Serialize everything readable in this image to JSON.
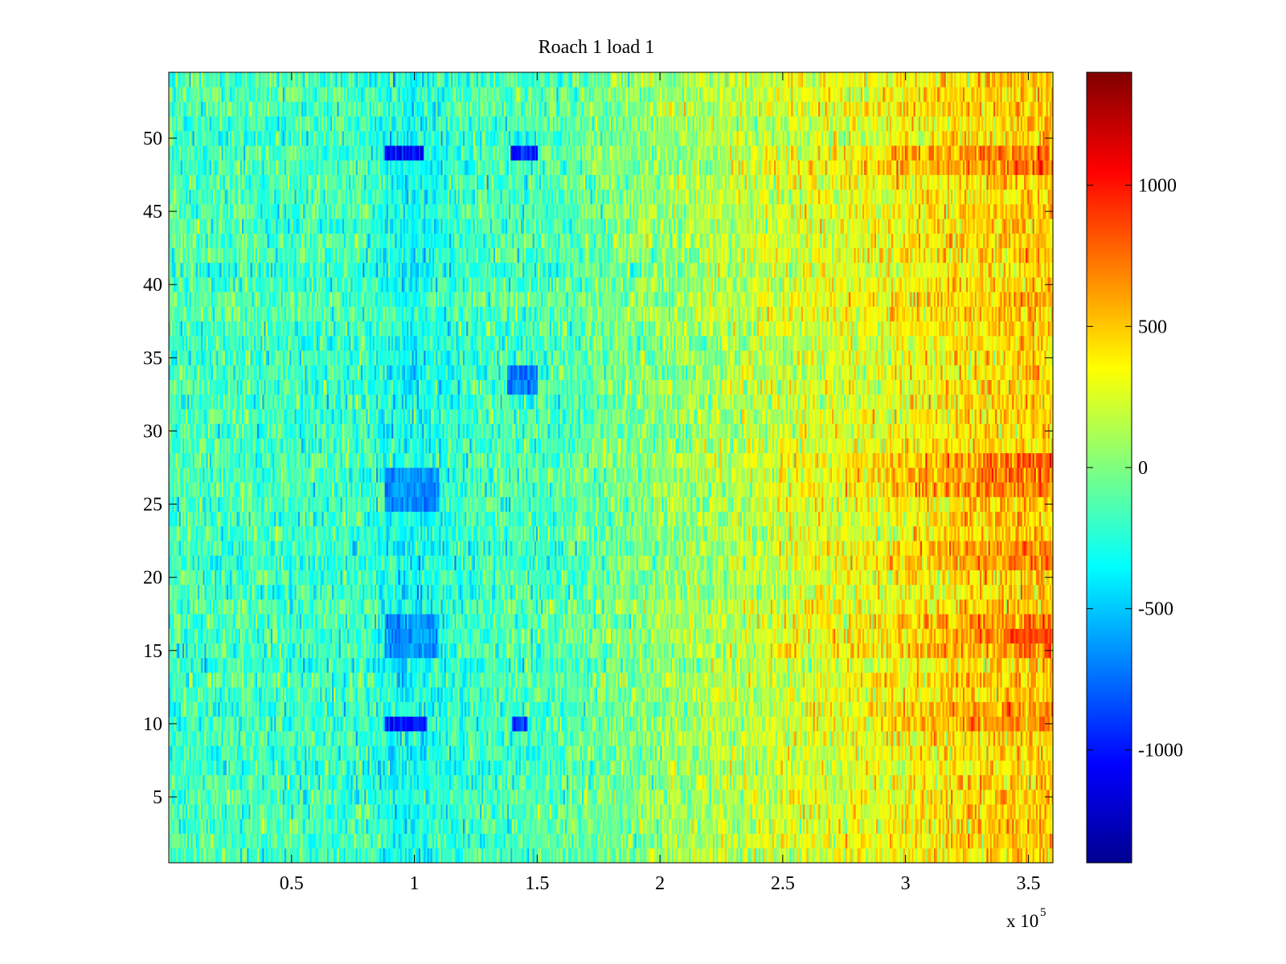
{
  "chart_data": {
    "type": "heatmap",
    "title": "Roach 1 load 1",
    "xlabel": "",
    "ylabel": "",
    "x_multiplier_label": "x 10",
    "x_multiplier_exponent": "5",
    "xlim": [
      0,
      3.6
    ],
    "ylim": [
      0.5,
      54.5
    ],
    "x_ticks": [
      0.5,
      1,
      1.5,
      2,
      2.5,
      3,
      3.5
    ],
    "x_tick_labels": [
      "0.5",
      "1",
      "1.5",
      "2",
      "2.5",
      "3",
      "3.5"
    ],
    "y_ticks": [
      5,
      10,
      15,
      20,
      25,
      30,
      35,
      40,
      45,
      50
    ],
    "y_tick_labels": [
      "5",
      "10",
      "15",
      "20",
      "25",
      "30",
      "35",
      "40",
      "45",
      "50"
    ],
    "rows": 54,
    "colormap": "jet",
    "color_limits": [
      -1400,
      1400
    ],
    "colorbar_ticks": [
      1000,
      500,
      0,
      -500,
      -1000
    ],
    "colorbar_tick_labels": [
      "1000",
      "500",
      "0",
      "-500",
      "-1000"
    ],
    "trend": {
      "x_knots": [
        0,
        0.8,
        0.9,
        1.0,
        1.1,
        1.3,
        1.5,
        1.7,
        1.9,
        2.1,
        2.3,
        2.5,
        2.7,
        2.9,
        3.1,
        3.3,
        3.5,
        3.6
      ],
      "values": [
        -150,
        -180,
        -300,
        -330,
        -260,
        -160,
        -160,
        -80,
        0,
        80,
        140,
        220,
        260,
        300,
        380,
        440,
        480,
        480
      ]
    },
    "hot_rows": [
      10,
      11,
      15,
      16,
      17,
      21,
      22,
      26,
      27,
      28,
      48,
      49
    ],
    "features": [
      {
        "x": [
          0.88,
          1.04
        ],
        "rows": [
          49,
          49
        ],
        "value": -1050
      },
      {
        "x": [
          1.39,
          1.5
        ],
        "rows": [
          49,
          49
        ],
        "value": -1000
      },
      {
        "x": [
          0.88,
          1.05
        ],
        "rows": [
          10,
          10
        ],
        "value": -950
      },
      {
        "x": [
          1.4,
          1.46
        ],
        "rows": [
          10,
          10
        ],
        "value": -950
      },
      {
        "x": [
          0.88,
          1.1
        ],
        "rows": [
          15,
          17
        ],
        "value": -650
      },
      {
        "x": [
          0.88,
          1.1
        ],
        "rows": [
          25,
          27
        ],
        "value": -650
      },
      {
        "x": [
          1.38,
          1.5
        ],
        "rows": [
          33,
          34
        ],
        "value": -750
      },
      {
        "x": [
          3.4,
          3.6
        ],
        "rows": [
          16,
          16
        ],
        "value": 850
      }
    ]
  }
}
